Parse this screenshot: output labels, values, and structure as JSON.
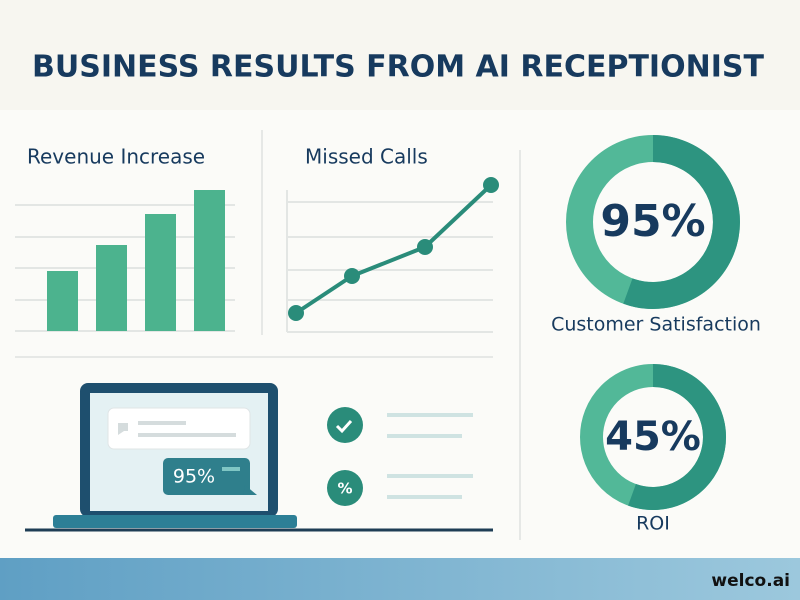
{
  "header": {
    "title": "BUSINESS RESULTS FROM AI RECEPTIONIST"
  },
  "panels": {
    "revenue": {
      "title": "Revenue Increase"
    },
    "missed_calls": {
      "title": "Missed Calls"
    }
  },
  "laptop": {
    "bubble": "95%"
  },
  "checklist": {
    "icon": "%"
  },
  "metrics": [
    {
      "value": "95%",
      "label": "Customer Satisfaction"
    },
    {
      "value": "45%",
      "label": "ROI"
    }
  ],
  "footer": {
    "logo": "welco.ai"
  }
}
